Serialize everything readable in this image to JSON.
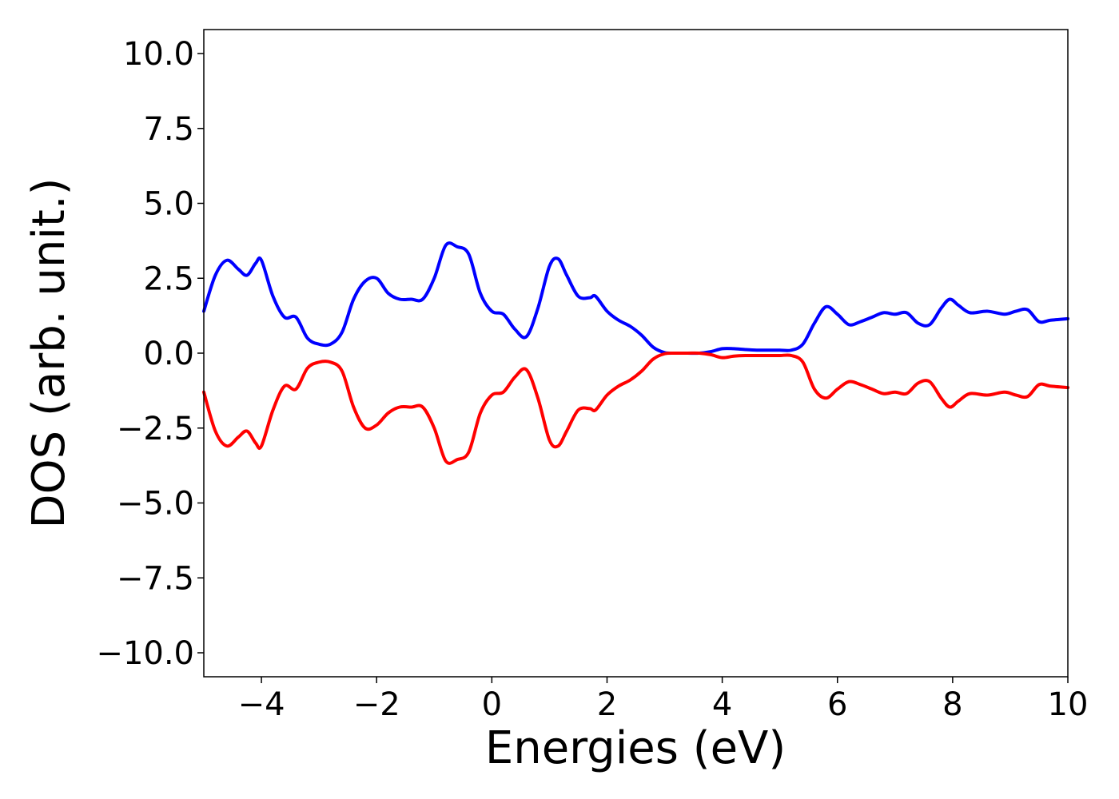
{
  "chart_data": {
    "type": "line",
    "title": "",
    "xlabel": "Energies (eV)",
    "ylabel": "DOS (arb. unit.)",
    "xlim": [
      -5,
      10
    ],
    "ylim": [
      -10.8,
      10.8
    ],
    "xticks": [
      -4,
      -2,
      0,
      2,
      4,
      6,
      8,
      10
    ],
    "xtick_labels": [
      "−4",
      "−2",
      "0",
      "2",
      "4",
      "6",
      "8",
      "10"
    ],
    "yticks": [
      10.0,
      7.5,
      5.0,
      2.5,
      0.0,
      -2.5,
      -5.0,
      -7.5,
      -10.0
    ],
    "ytick_labels": [
      "10.0",
      "7.5",
      "5.0",
      "2.5",
      "0.0",
      "−2.5",
      "−5.0",
      "−7.5",
      "−10.0"
    ],
    "grid": false,
    "legend": "none",
    "x": [
      -5.0,
      -4.8,
      -4.6,
      -4.4,
      -4.25,
      -4.1,
      -4.0,
      -3.8,
      -3.6,
      -3.4,
      -3.2,
      -3.0,
      -2.8,
      -2.6,
      -2.4,
      -2.2,
      -2.0,
      -1.8,
      -1.6,
      -1.4,
      -1.2,
      -1.0,
      -0.8,
      -0.6,
      -0.4,
      -0.2,
      0.0,
      0.2,
      0.4,
      0.6,
      0.8,
      1.0,
      1.15,
      1.3,
      1.5,
      1.7,
      1.8,
      2.0,
      2.2,
      2.4,
      2.6,
      2.8,
      3.0,
      3.2,
      3.4,
      3.6,
      3.8,
      4.0,
      4.2,
      4.4,
      4.6,
      4.8,
      5.0,
      5.2,
      5.4,
      5.6,
      5.8,
      6.0,
      6.2,
      6.4,
      6.6,
      6.8,
      7.0,
      7.2,
      7.4,
      7.6,
      7.8,
      7.95,
      8.1,
      8.3,
      8.6,
      8.9,
      9.1,
      9.3,
      9.5,
      9.7,
      10.0
    ],
    "series": [
      {
        "color": "#0000ff",
        "values": [
          1.4,
          2.6,
          3.1,
          2.8,
          2.6,
          3.0,
          3.1,
          1.9,
          1.2,
          1.2,
          0.5,
          0.3,
          0.3,
          0.7,
          1.8,
          2.4,
          2.5,
          2.0,
          1.8,
          1.8,
          1.8,
          2.5,
          3.6,
          3.55,
          3.3,
          2.0,
          1.4,
          1.3,
          0.8,
          0.55,
          1.5,
          2.9,
          3.15,
          2.6,
          1.9,
          1.85,
          1.9,
          1.4,
          1.1,
          0.9,
          0.6,
          0.2,
          0.02,
          0.0,
          0.0,
          0.0,
          0.05,
          0.15,
          0.15,
          0.12,
          0.1,
          0.1,
          0.1,
          0.1,
          0.3,
          1.0,
          1.55,
          1.3,
          0.95,
          1.05,
          1.2,
          1.35,
          1.3,
          1.35,
          1.0,
          0.95,
          1.5,
          1.8,
          1.6,
          1.35,
          1.4,
          1.3,
          1.4,
          1.45,
          1.05,
          1.1,
          1.15
        ]
      },
      {
        "color": "#ff0000",
        "values": [
          -1.3,
          -2.6,
          -3.1,
          -2.8,
          -2.6,
          -3.0,
          -3.1,
          -1.9,
          -1.1,
          -1.2,
          -0.5,
          -0.3,
          -0.3,
          -0.6,
          -1.8,
          -2.5,
          -2.4,
          -2.0,
          -1.8,
          -1.8,
          -1.8,
          -2.5,
          -3.6,
          -3.55,
          -3.3,
          -2.0,
          -1.4,
          -1.3,
          -0.8,
          -0.55,
          -1.5,
          -2.9,
          -3.1,
          -2.6,
          -1.9,
          -1.85,
          -1.9,
          -1.4,
          -1.1,
          -0.9,
          -0.6,
          -0.2,
          -0.02,
          0.0,
          0.0,
          0.0,
          -0.05,
          -0.15,
          -0.1,
          -0.08,
          -0.08,
          -0.08,
          -0.08,
          -0.08,
          -0.3,
          -1.2,
          -1.5,
          -1.2,
          -0.95,
          -1.05,
          -1.2,
          -1.35,
          -1.3,
          -1.35,
          -1.0,
          -0.95,
          -1.5,
          -1.8,
          -1.6,
          -1.35,
          -1.4,
          -1.3,
          -1.4,
          -1.45,
          -1.05,
          -1.1,
          -1.15
        ]
      }
    ]
  }
}
